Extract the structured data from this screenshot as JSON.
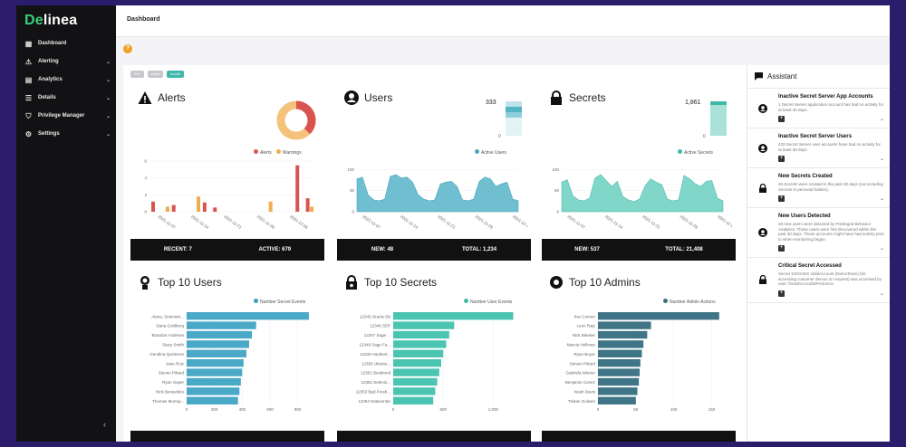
{
  "brand": {
    "name_a": "De",
    "name_b": "linea"
  },
  "nav": [
    {
      "label": "Dashboard",
      "icon": "grid-icon",
      "chevron": false
    },
    {
      "label": "Alerting",
      "icon": "warning-icon",
      "chevron": true
    },
    {
      "label": "Analytics",
      "icon": "chart-icon",
      "chevron": true
    },
    {
      "label": "Details",
      "icon": "list-icon",
      "chevron": true
    },
    {
      "label": "Privilege Manager",
      "icon": "shield-icon",
      "chevron": true
    },
    {
      "label": "Settings",
      "icon": "gear-icon",
      "chevron": true
    }
  ],
  "page_title": "Dashboard",
  "help_icon": "?",
  "chips": [
    "24h",
    "week",
    "month"
  ],
  "cards": {
    "alerts": {
      "title": "Alerts",
      "legend": [
        "Alerts",
        "Warnings"
      ],
      "recent": "RECENT: 7",
      "active": "ACTIVE: 679",
      "colors": {
        "alerts": "#d9534f",
        "warnings": "#f0ad4e"
      }
    },
    "users": {
      "title": "Users",
      "count": "333",
      "zero": "0",
      "legend": "Active Users",
      "new": "NEW: 48",
      "total": "TOTAL: 1,234"
    },
    "secrets": {
      "title": "Secrets",
      "count": "1,861",
      "zero": "0",
      "legend": "Active Secrets",
      "new": "NEW: 537",
      "total": "TOTAL: 21,408"
    }
  },
  "top_users": {
    "title": "Top 10 Users",
    "legend": "Number Secret Events",
    "rows": [
      "Alana, Smirnam...",
      "Dana Goldberg",
      "Brandon Andrews",
      "Stacy Smith",
      "Gendina Quinteros",
      "Jane Ruiz",
      "Steven Pittard",
      "Ryan Gayer",
      "Nick Benavides",
      "Thomas Murray..."
    ],
    "values": [
      880,
      500,
      470,
      450,
      430,
      410,
      400,
      390,
      380,
      370
    ]
  },
  "top_secrets": {
    "title": "Top 10 Secrets",
    "legend": "Number User Events",
    "rows": [
      "12345 Oracle Db",
      "12346 SEP",
      "12347 Sage ...",
      "12348 Sage Fa...",
      "12349 Vaultnet...",
      "12350 Ubuntu...",
      "12351 Bestbond",
      "12352 Seleniu...",
      "12353 Bad Fresh...",
      "12354 Datacenter"
    ],
    "values": [
      1200,
      610,
      560,
      530,
      500,
      480,
      460,
      440,
      420,
      400
    ]
  },
  "top_admins": {
    "title": "Top 10 Admins",
    "legend": "Number Admin Actions",
    "rows": [
      "Ilse Conner",
      "Leon Raju",
      "Nick Bleeker",
      "Marcia Hellman",
      "Ryan Boyer",
      "Steven Pittard",
      "Gabriela Wiener",
      "Benjamin Cortez",
      "Noah Davis",
      "Tristan Gulwen"
    ],
    "values": [
      160,
      70,
      65,
      60,
      58,
      56,
      55,
      54,
      52,
      50
    ]
  },
  "charts_text": {
    "alert_ticks": [
      "0",
      "2",
      "4",
      "6"
    ],
    "alert_dates": [
      "2021-11-07",
      "2021-11-14",
      "2021-11-21",
      "2021-11-28",
      "2021-12-05"
    ],
    "area_ticks": [
      "0",
      "50",
      "100"
    ],
    "area_dates": [
      "2021-11-07",
      "2021-11-14",
      "2021-11-21",
      "2021-11-28",
      "2021-12-05"
    ],
    "bar_ticks_users": [
      "0",
      "200",
      "400",
      "600",
      "800"
    ],
    "bar_ticks_secrets": [
      "0",
      "500",
      "1,000"
    ],
    "bar_ticks_admins": [
      "0",
      "50",
      "100",
      "150"
    ]
  },
  "alerts_series": {
    "alerts": [
      1.2,
      0,
      0.8,
      0,
      0,
      1.1,
      0.5,
      0,
      0,
      0,
      0,
      0,
      0,
      0,
      5.5,
      1.6
    ],
    "warnings": [
      0,
      0.6,
      0,
      0,
      1.8,
      0,
      0,
      0,
      0,
      0,
      0,
      1.2,
      0,
      0,
      0,
      0.6
    ]
  },
  "users_area": [
    78,
    82,
    40,
    28,
    26,
    30,
    84,
    88,
    80,
    82,
    70,
    40,
    30,
    26,
    28,
    66,
    70,
    72,
    60,
    28,
    26,
    30,
    72,
    82,
    78,
    60,
    66,
    70,
    30,
    26
  ],
  "secrets_area": [
    70,
    76,
    38,
    28,
    26,
    32,
    80,
    88,
    74,
    60,
    72,
    36,
    28,
    24,
    30,
    62,
    78,
    70,
    64,
    30,
    26,
    28,
    86,
    78,
    66,
    60,
    72,
    74,
    32,
    26
  ],
  "assistant": {
    "title": "Assistant",
    "items": [
      {
        "title": "Inactive Secret Server App Accounts",
        "desc": "1 Secret Server application account has had no activity for at least 30 days.",
        "icon": "user-icon"
      },
      {
        "title": "Inactive Secret Server Users",
        "desc": "433 Secret Server user accounts have had no activity for at least 30 days.",
        "icon": "user-icon"
      },
      {
        "title": "New Secrets Created",
        "desc": "45 Secrets were created in the past 30 days (not including Secrets in personal folders).",
        "icon": "lock-icon"
      },
      {
        "title": "New Users Detected",
        "desc": "48 new users were detected by Privileged Behavior Analytics. These users were first discovered within the past 30 days. These accounts might have had activity prior to when monitoring began.",
        "icon": "user-icon"
      },
      {
        "title": "Critical Secret Accessed",
        "desc": "Secret SSO\\ADS ValidAccount (DemoTeam) (for accessing customer demos on request) was accessed by user: thossho.local\\DPretoncis.",
        "icon": "lock-icon"
      }
    ]
  }
}
